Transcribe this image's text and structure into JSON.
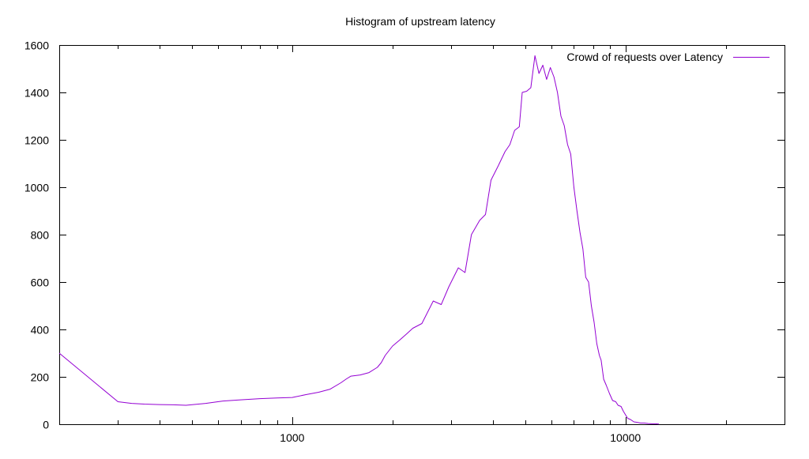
{
  "chart_data": {
    "type": "line",
    "title": "Histogram of upstream latency",
    "xlabel": "",
    "ylabel": "",
    "xscale": "log",
    "xlim": [
      200,
      30000
    ],
    "ylim": [
      0,
      1600
    ],
    "grid": false,
    "legend": "top-right",
    "x_tick_labels": [
      {
        "value": 1000,
        "label": "1000"
      },
      {
        "value": 10000,
        "label": "10000"
      }
    ],
    "y_ticks": [
      0,
      200,
      400,
      600,
      800,
      1000,
      1200,
      1400,
      1600
    ],
    "series": [
      {
        "name": "Crowd of requests over Latency",
        "color": "#9400d3",
        "points": [
          [
            200,
            300
          ],
          [
            300,
            95
          ],
          [
            330,
            88
          ],
          [
            360,
            85
          ],
          [
            400,
            83
          ],
          [
            440,
            82
          ],
          [
            480,
            80
          ],
          [
            550,
            88
          ],
          [
            620,
            98
          ],
          [
            700,
            103
          ],
          [
            800,
            108
          ],
          [
            900,
            111
          ],
          [
            1000,
            113
          ],
          [
            1100,
            125
          ],
          [
            1200,
            135
          ],
          [
            1300,
            148
          ],
          [
            1400,
            175
          ],
          [
            1450,
            190
          ],
          [
            1500,
            203
          ],
          [
            1600,
            208
          ],
          [
            1700,
            218
          ],
          [
            1800,
            240
          ],
          [
            1850,
            260
          ],
          [
            1900,
            290
          ],
          [
            2000,
            330
          ],
          [
            2100,
            355
          ],
          [
            2200,
            380
          ],
          [
            2300,
            405
          ],
          [
            2450,
            425
          ],
          [
            2650,
            520
          ],
          [
            2800,
            505
          ],
          [
            2950,
            580
          ],
          [
            3150,
            660
          ],
          [
            3300,
            640
          ],
          [
            3450,
            800
          ],
          [
            3650,
            860
          ],
          [
            3800,
            885
          ],
          [
            3950,
            1030
          ],
          [
            4150,
            1090
          ],
          [
            4350,
            1150
          ],
          [
            4500,
            1180
          ],
          [
            4650,
            1240
          ],
          [
            4800,
            1255
          ],
          [
            4900,
            1400
          ],
          [
            5050,
            1405
          ],
          [
            5200,
            1420
          ],
          [
            5350,
            1555
          ],
          [
            5500,
            1480
          ],
          [
            5650,
            1515
          ],
          [
            5800,
            1455
          ],
          [
            5950,
            1505
          ],
          [
            6100,
            1465
          ],
          [
            6250,
            1400
          ],
          [
            6400,
            1300
          ],
          [
            6550,
            1260
          ],
          [
            6700,
            1180
          ],
          [
            6850,
            1140
          ],
          [
            7000,
            1000
          ],
          [
            7150,
            900
          ],
          [
            7300,
            810
          ],
          [
            7450,
            740
          ],
          [
            7600,
            620
          ],
          [
            7750,
            600
          ],
          [
            7900,
            500
          ],
          [
            8050,
            430
          ],
          [
            8200,
            340
          ],
          [
            8350,
            290
          ],
          [
            8450,
            270
          ],
          [
            8600,
            190
          ],
          [
            8750,
            165
          ],
          [
            8950,
            130
          ],
          [
            9150,
            100
          ],
          [
            9350,
            95
          ],
          [
            9500,
            80
          ],
          [
            9700,
            75
          ],
          [
            9850,
            55
          ],
          [
            10000,
            40
          ],
          [
            10150,
            25
          ],
          [
            10350,
            20
          ],
          [
            10600,
            10
          ],
          [
            10850,
            8
          ],
          [
            11100,
            5
          ],
          [
            11400,
            5
          ],
          [
            11700,
            3
          ],
          [
            12000,
            2
          ],
          [
            12300,
            2
          ],
          [
            12600,
            1
          ]
        ]
      }
    ]
  }
}
